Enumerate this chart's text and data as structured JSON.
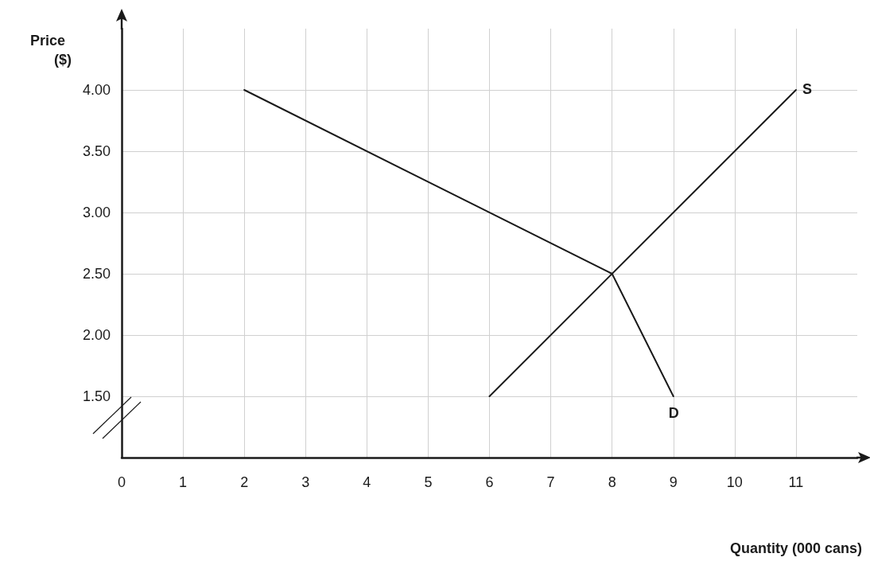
{
  "chart_data": {
    "type": "line",
    "xlabel": "Quantity (000 cans)",
    "ylabel": "Price\n($)",
    "series": [
      {
        "color": "#1a1a1a",
        "x": [
          2,
          8,
          9
        ],
        "values": [
          4.0,
          2.5,
          1.5
        ]
      },
      {
        "color": "#1a1a1a",
        "x": [
          6,
          11
        ],
        "values": [
          1.5,
          4.0
        ]
      }
    ],
    "annotations": [
      {
        "text": "S",
        "x": 11,
        "y": 4.0
      },
      {
        "text": "D",
        "x": 9,
        "y": 1.5
      }
    ],
    "xlim": [
      0,
      12
    ],
    "xticks": [
      0,
      1,
      2,
      3,
      4,
      5,
      6,
      7,
      8,
      9,
      10,
      11
    ],
    "ylim": [
      1.0,
      4.5
    ],
    "yticks": [
      {
        "value": 1.5,
        "label": "1.50"
      },
      {
        "value": 2.0,
        "label": "2.00"
      },
      {
        "value": 2.5,
        "label": "2.50"
      },
      {
        "value": 3.0,
        "label": "3.00"
      },
      {
        "value": 3.5,
        "label": "3.50"
      },
      {
        "value": 4.0,
        "label": "4.00"
      }
    ],
    "grid": true,
    "marker": "none",
    "line_style": "solid"
  }
}
